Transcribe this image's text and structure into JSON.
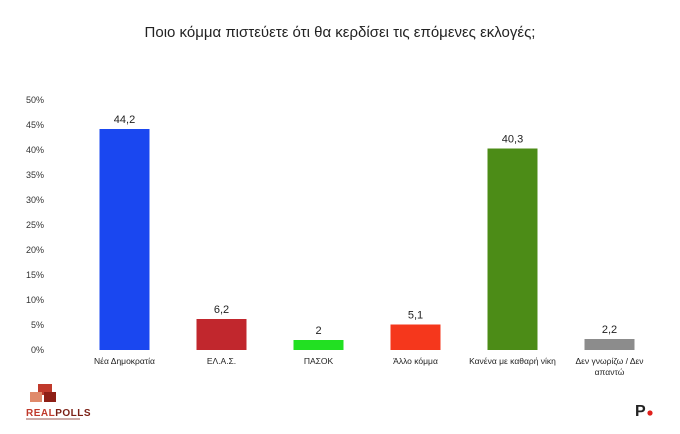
{
  "chart_data": {
    "type": "bar",
    "title": "Ποιο κόμμα πιστεύετε ότι θα κερδίσει τις επόμενες εκλογές;",
    "categories": [
      [
        "Νέα Δημοκρατία"
      ],
      [
        "ΕΛ.Α.Σ."
      ],
      [
        "ΠΑΣΟΚ"
      ],
      [
        "Άλλο κόμμα"
      ],
      [
        "Κανένα με καθαρή νίκη"
      ],
      [
        "Δεν γνωρίζω / Δεν",
        "απαντώ"
      ]
    ],
    "values": [
      44.2,
      6.2,
      2,
      5.1,
      40.3,
      2.2
    ],
    "value_labels": [
      "44,2",
      "6,2",
      "2",
      "5,1",
      "40,3",
      "2,2"
    ],
    "colors": [
      "#1a47f0",
      "#c1272d",
      "#22e022",
      "#f5371c",
      "#4c8c17",
      "#8c8c8c"
    ],
    "y_ticks": [
      "0%",
      "5%",
      "10%",
      "15%",
      "20%",
      "25%",
      "30%",
      "35%",
      "40%",
      "45%",
      "50%"
    ],
    "ylim": [
      0,
      50
    ],
    "grid": false,
    "legend": "none"
  },
  "branding": {
    "logo_text_real": "REAL",
    "logo_text_polls": "POLLS",
    "corner_mark": "P"
  }
}
